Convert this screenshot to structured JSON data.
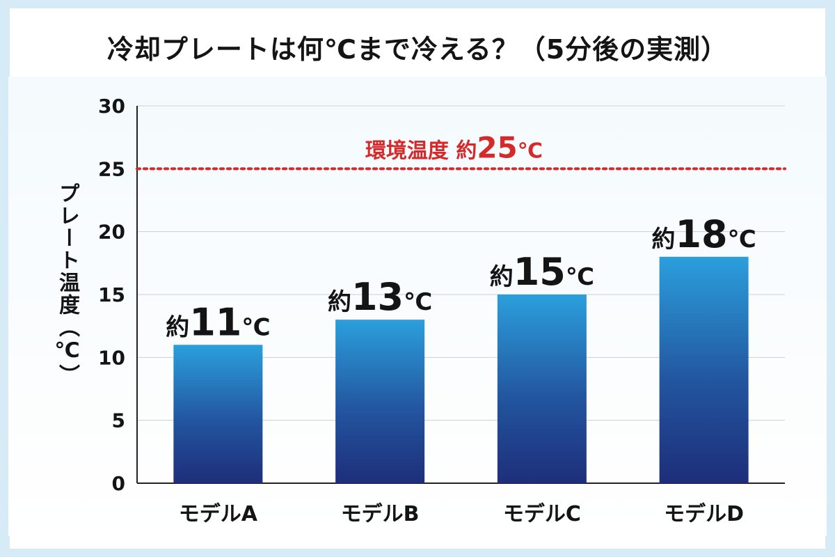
{
  "title": "冷却プレートは何℃まで冷える？（5分後の実測）",
  "chart_data": {
    "type": "bar",
    "title": "冷却プレートは何℃まで冷える？（5分後の実測）",
    "xlabel": "",
    "ylabel": "プレート温度（℃）",
    "categories": [
      "モデルA",
      "モデルB",
      "モデルC",
      "モデルD"
    ],
    "values": [
      11,
      13,
      15,
      18
    ],
    "data_labels": [
      {
        "prefix": "約",
        "number": "11",
        "unit": "℃"
      },
      {
        "prefix": "約",
        "number": "13",
        "unit": "℃"
      },
      {
        "prefix": "約",
        "number": "15",
        "unit": "℃"
      },
      {
        "prefix": "約",
        "number": "18",
        "unit": "℃"
      }
    ],
    "ylim": [
      0,
      30
    ],
    "yticks": [
      0,
      5,
      10,
      15,
      20,
      25,
      30
    ],
    "grid": true,
    "reference_line": {
      "value": 25,
      "style": "dotted",
      "color": "#d42a2a",
      "label_text": "環境温度 約",
      "label_number": "25",
      "label_unit": "℃"
    },
    "bar_gradient": [
      "#2b9fdc",
      "#1e2e7a"
    ]
  }
}
